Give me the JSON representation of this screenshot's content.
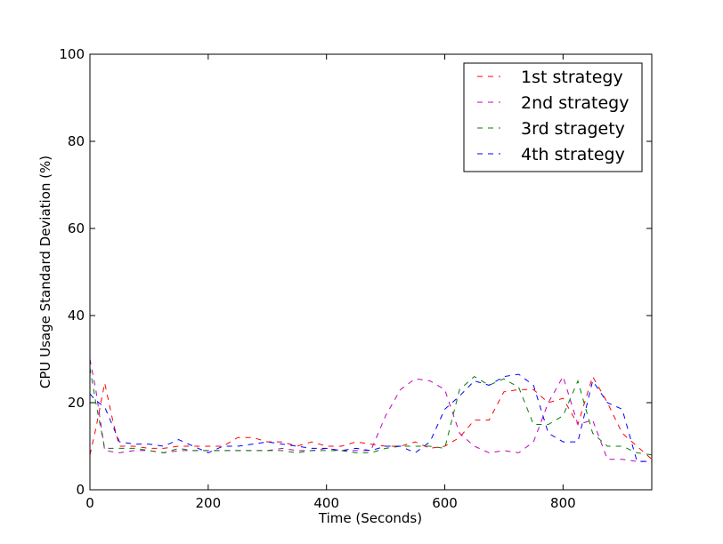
{
  "chart_data": {
    "type": "line",
    "title": "",
    "xlabel": "Time (Seconds)",
    "ylabel": "CPU Usage Standard Deviation (%)",
    "xlim": [
      0,
      950
    ],
    "ylim": [
      0,
      100
    ],
    "xticks": [
      0,
      200,
      400,
      600,
      800
    ],
    "yticks": [
      0,
      20,
      40,
      60,
      80,
      100
    ],
    "grid": false,
    "legend_position": "top-right",
    "line_style": "dashed",
    "series": [
      {
        "name": "1st strategy",
        "color": "#ff0000",
        "x": [
          0,
          10,
          25,
          40,
          50,
          75,
          100,
          125,
          150,
          175,
          200,
          225,
          250,
          275,
          300,
          325,
          350,
          375,
          400,
          425,
          450,
          475,
          500,
          525,
          550,
          575,
          600,
          625,
          650,
          675,
          700,
          725,
          750,
          775,
          800,
          825,
          850,
          875,
          900,
          925,
          950
        ],
        "y": [
          8,
          14,
          24.5,
          15,
          10,
          10,
          9.5,
          9.5,
          10,
          10,
          10,
          10,
          12,
          12,
          11,
          11,
          10,
          11,
          10,
          10,
          11,
          10.5,
          10,
          10,
          11,
          9.5,
          10,
          12,
          16,
          16,
          22.5,
          23,
          23,
          20,
          21,
          15,
          26,
          20,
          13,
          10,
          7
        ]
      },
      {
        "name": "2nd strategy",
        "color": "#bf00bf",
        "x": [
          0,
          10,
          25,
          50,
          75,
          100,
          125,
          150,
          175,
          200,
          225,
          250,
          275,
          300,
          325,
          350,
          375,
          400,
          425,
          450,
          475,
          500,
          525,
          550,
          575,
          600,
          625,
          650,
          675,
          700,
          725,
          750,
          775,
          800,
          825,
          850,
          875,
          900,
          925,
          950
        ],
        "y": [
          30,
          23,
          9,
          8.5,
          9,
          9,
          8.5,
          9,
          9,
          9,
          9,
          9,
          9,
          9,
          9.5,
          9,
          9,
          9.5,
          9,
          9,
          9,
          17,
          23,
          25.5,
          25,
          23,
          13,
          10,
          8.5,
          9,
          8.5,
          11,
          20,
          26,
          15,
          16,
          7,
          7,
          6.5,
          6.5
        ]
      },
      {
        "name": "3rd stragety",
        "color": "#008000",
        "x": [
          0,
          10,
          25,
          50,
          75,
          100,
          125,
          150,
          175,
          200,
          225,
          250,
          275,
          300,
          325,
          350,
          375,
          400,
          425,
          450,
          475,
          500,
          525,
          550,
          575,
          600,
          625,
          650,
          675,
          700,
          725,
          750,
          775,
          800,
          825,
          850,
          875,
          900,
          925,
          950
        ],
        "y": [
          28,
          20,
          9.5,
          9.5,
          9.5,
          9,
          8.5,
          9.5,
          9,
          9,
          9,
          9,
          9,
          9,
          9,
          8.5,
          9,
          9,
          9,
          8.5,
          8.5,
          9.5,
          10,
          10,
          10,
          9.5,
          23,
          26,
          24,
          25.5,
          23.5,
          15,
          15,
          17,
          25,
          13,
          10,
          10,
          8.5,
          8
        ]
      },
      {
        "name": "4th strategy",
        "color": "#0000ff",
        "x": [
          0,
          10,
          25,
          50,
          75,
          100,
          125,
          150,
          175,
          200,
          225,
          250,
          275,
          300,
          325,
          350,
          375,
          400,
          425,
          450,
          475,
          500,
          525,
          550,
          575,
          600,
          625,
          650,
          675,
          700,
          725,
          750,
          775,
          800,
          825,
          850,
          875,
          900,
          925,
          950
        ],
        "y": [
          22,
          20.5,
          19,
          11,
          10.5,
          10.5,
          10,
          11.5,
          10,
          8.5,
          10,
          10,
          10.5,
          11,
          10.5,
          10,
          9.5,
          9.5,
          9,
          9.5,
          9,
          10,
          10,
          8.5,
          11,
          18.5,
          21.5,
          25,
          24,
          26,
          26.5,
          24,
          13,
          11,
          11,
          25,
          20,
          18.5,
          6.5,
          6.5
        ]
      }
    ]
  }
}
